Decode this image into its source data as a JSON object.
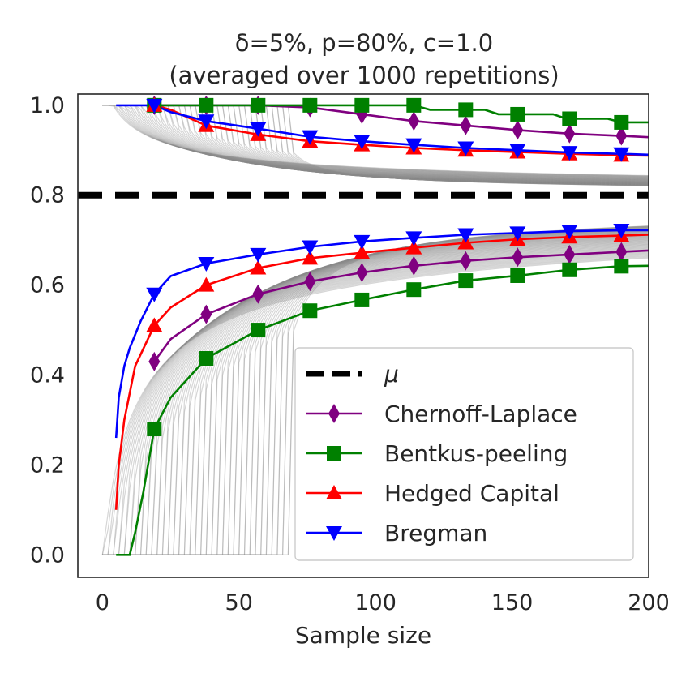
{
  "chart_data": {
    "type": "line",
    "title_line1": "δ=5%, p=80%, c=1.0",
    "title_line2": "(averaged over 1000 repetitions)",
    "xlabel": "Sample size",
    "ylabel": "",
    "xlim": [
      -9,
      200
    ],
    "ylim": [
      -0.05,
      1.025
    ],
    "x_ticks": [
      0,
      50,
      100,
      150,
      200
    ],
    "y_ticks": [
      0.0,
      0.2,
      0.4,
      0.6,
      0.8,
      1.0
    ],
    "x_tick_labels": [
      "0",
      "50",
      "100",
      "150",
      "200"
    ],
    "y_tick_labels": [
      "0.0",
      "0.2",
      "0.4",
      "0.6",
      "0.8",
      "1.0"
    ],
    "mu": 0.8,
    "mu_label": "μ",
    "legend_position": "lower-right",
    "series": [
      {
        "name": "Chernoff-Laplace",
        "color": "#800080",
        "marker": "diamond",
        "upper": [
          [
            19,
            1.0
          ],
          [
            30,
            1.0
          ],
          [
            38,
            1.0
          ],
          [
            57,
            1.0
          ],
          [
            76,
            0.995
          ],
          [
            95,
            0.98
          ],
          [
            114,
            0.965
          ],
          [
            133,
            0.955
          ],
          [
            152,
            0.945
          ],
          [
            171,
            0.937
          ],
          [
            190,
            0.932
          ],
          [
            200,
            0.929
          ]
        ],
        "lower": [
          [
            19,
            0.43
          ],
          [
            25,
            0.48
          ],
          [
            38,
            0.535
          ],
          [
            57,
            0.58
          ],
          [
            76,
            0.608
          ],
          [
            95,
            0.628
          ],
          [
            114,
            0.643
          ],
          [
            133,
            0.654
          ],
          [
            152,
            0.662
          ],
          [
            171,
            0.668
          ],
          [
            190,
            0.674
          ],
          [
            200,
            0.677
          ]
        ],
        "markers_upper": [
          19,
          38,
          57,
          76,
          95,
          114,
          133,
          152,
          171,
          190
        ],
        "markers_lower": [
          19,
          38,
          57,
          76,
          95,
          114,
          133,
          152,
          171,
          190
        ]
      },
      {
        "name": "Bentkus-peeling",
        "color": "#008000",
        "marker": "square",
        "upper": [
          [
            19,
            1.0
          ],
          [
            114,
            1.0
          ],
          [
            120,
            0.99
          ],
          [
            140,
            0.99
          ],
          [
            145,
            0.98
          ],
          [
            165,
            0.98
          ],
          [
            170,
            0.97
          ],
          [
            185,
            0.97
          ],
          [
            190,
            0.962
          ],
          [
            200,
            0.962
          ]
        ],
        "lower": [
          [
            5,
            0.0
          ],
          [
            10,
            0.0
          ],
          [
            12,
            0.05
          ],
          [
            15,
            0.14
          ],
          [
            19,
            0.28
          ],
          [
            25,
            0.35
          ],
          [
            38,
            0.437
          ],
          [
            57,
            0.5
          ],
          [
            76,
            0.543
          ],
          [
            95,
            0.567
          ],
          [
            114,
            0.59
          ],
          [
            133,
            0.61
          ],
          [
            152,
            0.621
          ],
          [
            171,
            0.634
          ],
          [
            190,
            0.642
          ],
          [
            200,
            0.643
          ]
        ],
        "markers_upper": [
          19,
          38,
          57,
          76,
          95,
          114,
          133,
          152,
          171,
          190
        ],
        "markers_lower": [
          19,
          38,
          57,
          76,
          95,
          114,
          133,
          152,
          171,
          190
        ]
      },
      {
        "name": "Hedged Capital",
        "color": "#ff0000",
        "marker": "triangle-up",
        "upper": [
          [
            19,
            1.0
          ],
          [
            25,
            0.99
          ],
          [
            38,
            0.955
          ],
          [
            57,
            0.935
          ],
          [
            76,
            0.92
          ],
          [
            95,
            0.912
          ],
          [
            114,
            0.905
          ],
          [
            133,
            0.9
          ],
          [
            152,
            0.896
          ],
          [
            171,
            0.892
          ],
          [
            190,
            0.889
          ],
          [
            200,
            0.888
          ]
        ],
        "lower": [
          [
            5,
            0.1
          ],
          [
            6,
            0.2
          ],
          [
            8,
            0.3
          ],
          [
            12,
            0.42
          ],
          [
            19,
            0.51
          ],
          [
            25,
            0.55
          ],
          [
            38,
            0.6
          ],
          [
            57,
            0.638
          ],
          [
            76,
            0.66
          ],
          [
            95,
            0.672
          ],
          [
            114,
            0.683
          ],
          [
            133,
            0.694
          ],
          [
            152,
            0.702
          ],
          [
            171,
            0.707
          ],
          [
            190,
            0.71
          ],
          [
            200,
            0.712
          ]
        ],
        "markers_upper": [
          19,
          38,
          57,
          76,
          95,
          114,
          133,
          152,
          171,
          190
        ],
        "markers_lower": [
          19,
          38,
          57,
          76,
          95,
          114,
          133,
          152,
          171,
          190
        ]
      },
      {
        "name": "Bregman",
        "color": "#0000ff",
        "marker": "triangle-down",
        "upper": [
          [
            5,
            1.0
          ],
          [
            19,
            1.0
          ],
          [
            25,
            0.985
          ],
          [
            38,
            0.965
          ],
          [
            57,
            0.948
          ],
          [
            76,
            0.93
          ],
          [
            95,
            0.92
          ],
          [
            114,
            0.912
          ],
          [
            133,
            0.905
          ],
          [
            152,
            0.9
          ],
          [
            171,
            0.895
          ],
          [
            190,
            0.892
          ],
          [
            200,
            0.89
          ]
        ],
        "lower": [
          [
            5,
            0.26
          ],
          [
            6,
            0.35
          ],
          [
            8,
            0.42
          ],
          [
            10,
            0.46
          ],
          [
            14,
            0.52
          ],
          [
            19,
            0.58
          ],
          [
            25,
            0.62
          ],
          [
            38,
            0.648
          ],
          [
            57,
            0.668
          ],
          [
            76,
            0.685
          ],
          [
            95,
            0.697
          ],
          [
            114,
            0.705
          ],
          [
            133,
            0.712
          ],
          [
            152,
            0.716
          ],
          [
            171,
            0.72
          ],
          [
            190,
            0.722
          ],
          [
            200,
            0.722
          ]
        ],
        "markers_upper": [
          19,
          38,
          57,
          76,
          95,
          114,
          133,
          152,
          171,
          190
        ],
        "markers_lower": [
          19,
          38,
          57,
          76,
          95,
          114,
          133,
          152,
          171,
          190
        ]
      }
    ]
  }
}
